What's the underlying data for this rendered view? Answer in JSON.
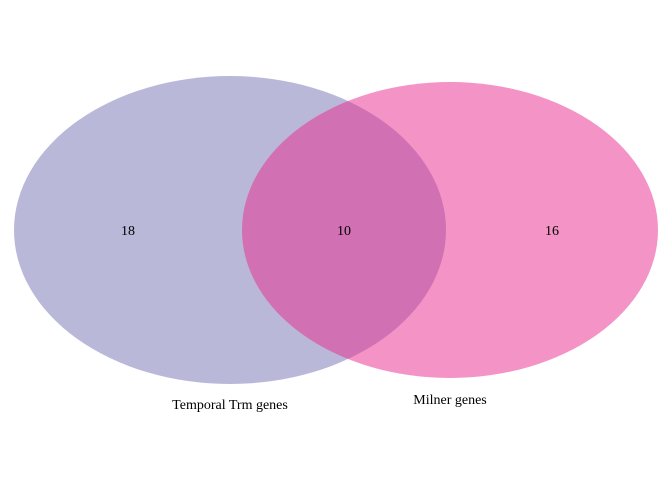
{
  "diagram": {
    "type": "venn",
    "sets": [
      {
        "name": "Temporal Trm genes",
        "only_count": "18",
        "color": "#b9b8d9"
      },
      {
        "name": "Milner genes",
        "only_count": "16",
        "color": "#f493c6"
      }
    ],
    "intersection": {
      "count": "10",
      "color": "#d170b2"
    }
  }
}
